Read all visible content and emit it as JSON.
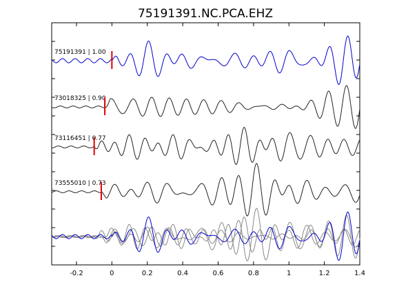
{
  "chart_data": {
    "type": "line",
    "title": "75191391.NC.PCA.EHZ",
    "xlabel": "",
    "ylabel": "",
    "xlim": [
      -0.34,
      1.4
    ],
    "x_ticks": [
      -0.2,
      0,
      0.2,
      0.4,
      0.6,
      0.8,
      1,
      1.2,
      1.4
    ],
    "x_tick_labels": [
      "-0.2",
      "0",
      "0.2",
      "0.4",
      "0.6",
      "0.8",
      "1",
      "1.2",
      "1.4"
    ],
    "grid": false,
    "traces": [
      {
        "label": "75191391 | 1.00",
        "pick_time": 0.0,
        "color": "#0000cc",
        "seed": 1
      },
      {
        "label": "73018325 | 0.90",
        "pick_time": -0.04,
        "color": "#222222",
        "seed": 2
      },
      {
        "label": "73116451 | 0.77",
        "pick_time": -0.1,
        "color": "#222222",
        "seed": 3
      },
      {
        "label": "73555010 | 0.73",
        "pick_time": -0.06,
        "color": "#222222",
        "seed": 4
      }
    ],
    "stack": {
      "label": "",
      "colors": [
        "#888888",
        "#0000cc"
      ]
    }
  },
  "colors": {
    "primary_trace": "#0000cc",
    "other_trace": "#222222",
    "stack_trace": "#888888",
    "pick_marker": "#dd0000",
    "axes": "#000000"
  }
}
